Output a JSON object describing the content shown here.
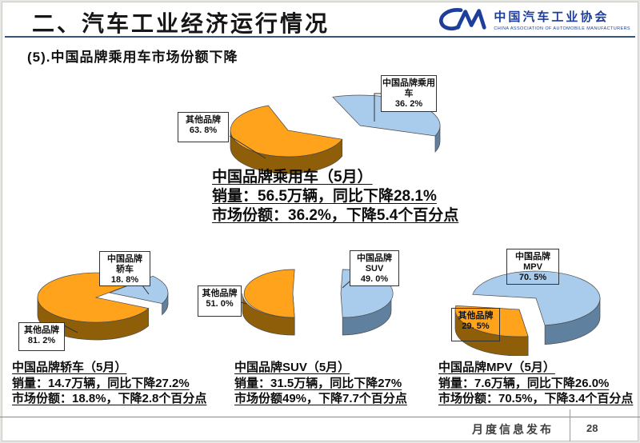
{
  "header": {
    "title": "二、汽车工业经济运行情况",
    "subtitle": "(5).中国品牌乘用车市场份额下降",
    "rule_color": "#33557f",
    "logo": {
      "mark": "CM-swoosh",
      "org_cn": "中国汽车工业协会",
      "org_en": "CHINA ASSOCIATION OF AUTOMOBILE MANUFACTURERS",
      "color": "#1d3e9b"
    }
  },
  "footer": {
    "label": "月度信息发布",
    "page_number": "28"
  },
  "chart_data": [
    {
      "id": "passenger-cars",
      "type": "pie",
      "title": "中国品牌乘用车（5月）",
      "slices": [
        {
          "name": "其他品牌",
          "pct": 63.8,
          "color": "#FFA21C",
          "side": "#8F5E08"
        },
        {
          "name": "中国品牌乘用车",
          "pct": 36.2,
          "color": "#A9CBEC",
          "side": "#60809F"
        }
      ],
      "labels": [
        {
          "lines": [
            "其他品牌",
            "63. 8%",
            ""
          ]
        },
        {
          "lines": [
            "中国品牌乘用",
            "车",
            "36. 2%"
          ]
        }
      ],
      "summary": {
        "title": "中国品牌乘用车（5月）",
        "line1": "销量：56.5万辆，同比下降28.1%",
        "line2": "市场份额：36.2%，下降5.4个百分点"
      }
    },
    {
      "id": "sedans",
      "type": "pie",
      "title": "中国品牌轿车（5月）",
      "slices": [
        {
          "name": "其他品牌",
          "pct": 81.2,
          "color": "#FFA21C",
          "side": "#8F5E08"
        },
        {
          "name": "中国品牌轿车",
          "pct": 18.8,
          "color": "#A9CBEC",
          "side": "#60809F"
        }
      ],
      "labels": [
        {
          "lines": [
            "其他品牌",
            "81. 2%",
            ""
          ]
        },
        {
          "lines": [
            "中国品牌",
            "轿车",
            "18. 8%"
          ]
        }
      ],
      "summary": {
        "title": "中国品牌轿车（5月）",
        "line1": "销量：14.7万辆，同比下降27.2%",
        "line2": "市场份额：18.8%，下降2.8个百分点"
      }
    },
    {
      "id": "suv",
      "type": "pie",
      "title": "中国品牌SUV（5月）",
      "slices": [
        {
          "name": "其他品牌",
          "pct": 51.0,
          "color": "#FFA21C",
          "side": "#8F5E08"
        },
        {
          "name": "中国品牌SUV",
          "pct": 49.0,
          "color": "#A9CBEC",
          "side": "#60809F"
        }
      ],
      "labels": [
        {
          "lines": [
            "其他品牌",
            "51. 0%",
            ""
          ]
        },
        {
          "lines": [
            "中国品牌",
            "SUV",
            "49. 0%"
          ]
        }
      ],
      "summary": {
        "title": "中国品牌SUV（5月）",
        "line1": "销量：31.5万辆，同比下降27%",
        "line2": "市场份额49%，下降7.7个百分点"
      }
    },
    {
      "id": "mpv",
      "type": "pie",
      "title": "中国品牌MPV（5月）",
      "slices": [
        {
          "name": "中国品牌MPV",
          "pct": 70.5,
          "color": "#A9CBEC",
          "side": "#60809F"
        },
        {
          "name": "其他品牌",
          "pct": 29.5,
          "color": "#FFA21C",
          "side": "#8F5E08"
        }
      ],
      "labels": [
        {
          "lines": [
            "中国品牌",
            "MPV",
            "70. 5%"
          ]
        },
        {
          "lines": [
            "其他品牌",
            "29. 5%",
            ""
          ]
        }
      ],
      "summary": {
        "title": "中国品牌MPV（5月）",
        "line1": "销量：7.6万辆，同比下降26.0%",
        "line2": "市场份额：70.5%，下降3.4个百分点"
      }
    }
  ]
}
